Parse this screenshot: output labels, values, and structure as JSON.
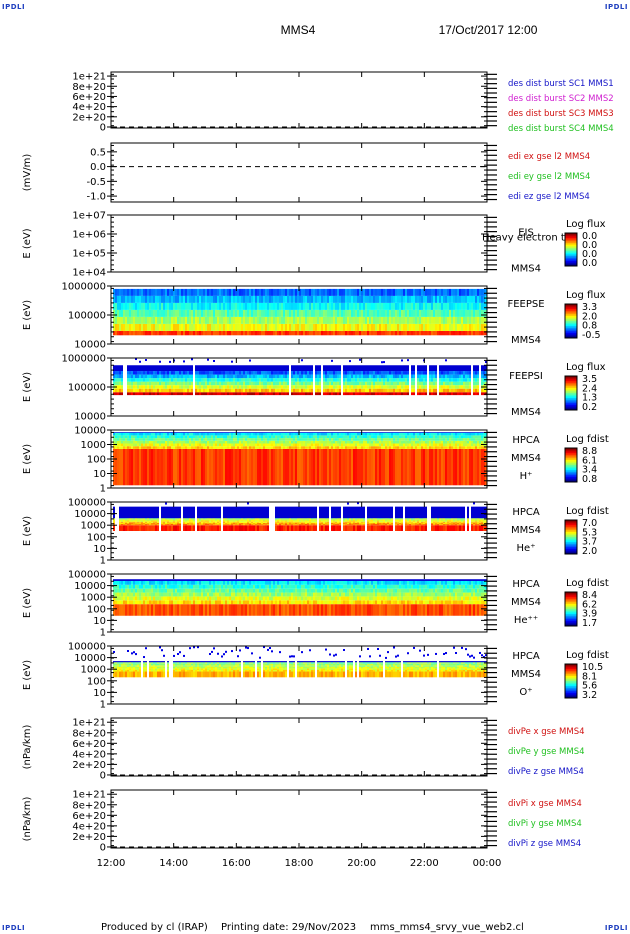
{
  "header": {
    "corner_label": "IPDLI",
    "title": "MMS4",
    "datetime": "17/Oct/2017 12:00"
  },
  "footer": {
    "produced_by": "Produced by cl (IRAP)",
    "printing_date": "Printing date: 29/Nov/2023",
    "filename": "mms_mms4_srvy_vue_web2.cl"
  },
  "chart_data": [
    {
      "type": "line",
      "id": "des-dist",
      "ylabel": "",
      "ytick_labels": [
        "1e+21",
        "8e+20",
        "6e+20",
        "4e+20",
        "2e+20",
        "0"
      ],
      "ytick_values": [
        1e+21,
        8e+20,
        6e+20,
        4e+20,
        2e+20,
        0
      ],
      "ylim": [
        -2e+19,
        1.08e+21
      ],
      "dashed_zero": true,
      "series": [
        {
          "name": "des dist burst SC1 MMS1",
          "color": "#1515c8"
        },
        {
          "name": "des dist burst SC2 MMS2",
          "color": "#d020d0"
        },
        {
          "name": "des dist burst SC3 MMS3",
          "color": "#d01010"
        },
        {
          "name": "des dist burst SC4 MMS4",
          "color": "#20c020"
        }
      ]
    },
    {
      "type": "line",
      "id": "edi-e",
      "ylabel": "(mV/m)",
      "ytick_labels": [
        "0.5",
        "0.0",
        "-0.5",
        "-1.0"
      ],
      "ytick_values": [
        0.5,
        0.0,
        -0.5,
        -1.0
      ],
      "ylim": [
        -1.2,
        0.8
      ],
      "dashed_zero": true,
      "series": [
        {
          "name": "edi ex gse l2 MMS4",
          "color": "#d01010"
        },
        {
          "name": "edi ey gse l2 MMS4",
          "color": "#20c020"
        },
        {
          "name": "edi ez gse l2 MMS4",
          "color": "#1515c8"
        }
      ]
    },
    {
      "type": "heatmap",
      "id": "eis",
      "ylabel": "E (eV)",
      "ytick_labels": [
        "1e+07",
        "1e+06",
        "1e+05",
        "1e+04"
      ],
      "log_range": [
        4,
        7
      ],
      "instrument": "EIS",
      "spacecraft": "MMS4",
      "species": "",
      "overlay_text": "Heavy electron to",
      "cbar_title": "Log flux",
      "cbar_ticks": [
        "0.0",
        "0.0",
        "0.0",
        "0.0"
      ],
      "fill": null
    },
    {
      "type": "heatmap",
      "id": "feeps-e",
      "ylabel": "E (eV)",
      "ytick_labels": [
        "1000000",
        "100000",
        "10000"
      ],
      "log_range": [
        4,
        6
      ],
      "instrument": "FEEPSE",
      "spacecraft": "MMS4",
      "species": "",
      "overlay_text": "",
      "cbar_title": "Log flux",
      "cbar_ticks": [
        "3.3",
        "2.0",
        "0.8",
        "-0.5"
      ],
      "fill": {
        "low_band": [
          4.3,
          4.45
        ],
        "low_level": 0.82,
        "main": [
          4.45,
          5.9
        ],
        "main_level": 0.15,
        "top": 5.9,
        "speckle": 0.2
      }
    },
    {
      "type": "heatmap",
      "id": "feeps-i",
      "ylabel": "E (eV)",
      "ytick_labels": [
        "1000000",
        "100000",
        "10000"
      ],
      "log_range": [
        4,
        6
      ],
      "instrument": "FEEPSI",
      "spacecraft": "MMS4",
      "species": "",
      "overlay_text": "",
      "cbar_title": "Log flux",
      "cbar_ticks": [
        "3.5",
        "2.4",
        "1.3",
        "0.2"
      ],
      "fill": {
        "low_band": [
          4.72,
          4.82
        ],
        "low_level": 0.92,
        "main": [
          4.82,
          5.55
        ],
        "main_level": 0.12,
        "top": 5.75,
        "speckle": 0.45
      }
    },
    {
      "type": "heatmap",
      "id": "hpca-h",
      "ylabel": "E (eV)",
      "ytick_labels": [
        "10000",
        "1000",
        "100",
        "10",
        "1"
      ],
      "log_range": [
        0,
        4.3
      ],
      "instrument": "HPCA",
      "spacecraft": "MMS4",
      "species": "H⁺",
      "overlay_text": "",
      "cbar_title": "Log fdist",
      "cbar_ticks": [
        "8.8",
        "6.1",
        "3.4",
        "0.8"
      ],
      "fill": {
        "low_band": [
          0.2,
          2.9
        ],
        "low_level": 0.82,
        "main": [
          2.9,
          4.1
        ],
        "main_level": 0.3,
        "top": 4.15,
        "speckle": 0.1
      }
    },
    {
      "type": "heatmap",
      "id": "hpca-he1",
      "ylabel": "E (eV)",
      "ytick_labels": [
        "100000",
        "10000",
        "1000",
        "100",
        "10",
        "1"
      ],
      "log_range": [
        0,
        5
      ],
      "instrument": "HPCA",
      "spacecraft": "MMS4",
      "species": "He⁺",
      "overlay_text": "",
      "cbar_title": "Log fdist",
      "cbar_ticks": [
        "7.0",
        "5.3",
        "3.7",
        "2.0"
      ],
      "fill": {
        "low_band": [
          2.5,
          3.0
        ],
        "low_level": 0.85,
        "main": [
          3.0,
          3.6
        ],
        "main_level": 0.5,
        "top": 4.6,
        "speckle": 0.7
      }
    },
    {
      "type": "heatmap",
      "id": "hpca-he2",
      "ylabel": "E (eV)",
      "ytick_labels": [
        "100000",
        "10000",
        "1000",
        "100",
        "10",
        "1"
      ],
      "log_range": [
        0,
        5
      ],
      "instrument": "HPCA",
      "spacecraft": "MMS4",
      "species": "He⁺⁺",
      "overlay_text": "",
      "cbar_title": "Log fdist",
      "cbar_ticks": [
        "8.4",
        "6.2",
        "3.9",
        "1.7"
      ],
      "fill": {
        "low_band": [
          1.4,
          2.4
        ],
        "low_level": 0.8,
        "main": [
          2.4,
          4.4
        ],
        "main_level": 0.3,
        "top": 4.55,
        "speckle": 0.1
      }
    },
    {
      "type": "heatmap",
      "id": "hpca-o",
      "ylabel": "E (eV)",
      "ytick_labels": [
        "100000",
        "10000",
        "1000",
        "100",
        "10",
        "1"
      ],
      "log_range": [
        0,
        5
      ],
      "instrument": "HPCA",
      "spacecraft": "MMS4",
      "species": "O⁺",
      "overlay_text": "",
      "cbar_title": "Log fdist",
      "cbar_ticks": [
        "10.5",
        "8.1",
        "5.6",
        "3.2"
      ],
      "fill": {
        "low_band": [
          2.3,
          2.8
        ],
        "low_level": 0.7,
        "main": [
          2.8,
          3.6
        ],
        "main_level": 0.48,
        "top": 3.7,
        "speckle": 0.6
      }
    },
    {
      "type": "line",
      "id": "divpe",
      "ylabel": "(nPa/km)",
      "ytick_labels": [
        "1e+21",
        "8e+20",
        "6e+20",
        "4e+20",
        "2e+20",
        "0"
      ],
      "ytick_values": [
        1e+21,
        8e+20,
        6e+20,
        4e+20,
        2e+20,
        0
      ],
      "ylim": [
        -2e+19,
        1.08e+21
      ],
      "dashed_zero": true,
      "series": [
        {
          "name": "divPe x gse MMS4",
          "color": "#d01010"
        },
        {
          "name": "divPe y gse MMS4",
          "color": "#20c020"
        },
        {
          "name": "divPe z gse MMS4",
          "color": "#1515c8"
        }
      ]
    },
    {
      "type": "line",
      "id": "divpi",
      "ylabel": "(nPa/km)",
      "ytick_labels": [
        "1e+21",
        "8e+20",
        "6e+20",
        "4e+20",
        "2e+20",
        "0"
      ],
      "ytick_values": [
        1e+21,
        8e+20,
        6e+20,
        4e+20,
        2e+20,
        0
      ],
      "ylim": [
        -2e+19,
        1.08e+21
      ],
      "dashed_zero": true,
      "series": [
        {
          "name": "divPi x gse MMS4",
          "color": "#d01010"
        },
        {
          "name": "divPi y gse MMS4",
          "color": "#20c020"
        },
        {
          "name": "divPi z gse MMS4",
          "color": "#1515c8"
        }
      ]
    }
  ],
  "x_axis": {
    "tick_labels": [
      "12:00",
      "14:00",
      "16:00",
      "18:00",
      "20:00",
      "22:00",
      "00:00"
    ],
    "range_hours": [
      12,
      24
    ]
  }
}
